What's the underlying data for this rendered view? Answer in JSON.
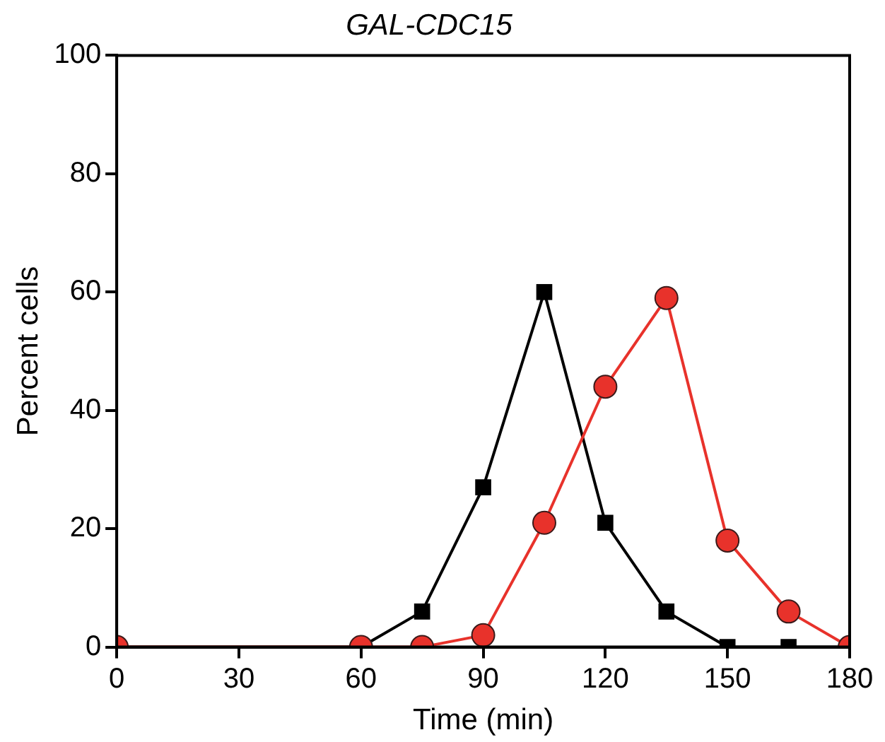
{
  "chart_data": {
    "type": "line",
    "title": "GAL-CDC15",
    "xlabel": "Time (min)",
    "ylabel": "Percent cells",
    "x": [
      0,
      60,
      75,
      90,
      105,
      120,
      135,
      150,
      165,
      180
    ],
    "series": [
      {
        "color": "#000000",
        "marker": "square",
        "values": [
          0,
          0,
          6,
          27,
          60,
          21,
          6,
          0,
          0,
          0
        ]
      },
      {
        "color": "#e8322b",
        "marker": "circle",
        "values": [
          0,
          0,
          0,
          2,
          21,
          44,
          59,
          18,
          6,
          0
        ]
      }
    ],
    "xlim": [
      0,
      180
    ],
    "xticks": [
      0,
      30,
      60,
      90,
      120,
      150,
      180
    ],
    "ylim": [
      0,
      100
    ],
    "yticks": [
      0,
      20,
      40,
      60,
      80,
      100
    ],
    "grid": false,
    "legend": false,
    "line_style": "solid"
  }
}
